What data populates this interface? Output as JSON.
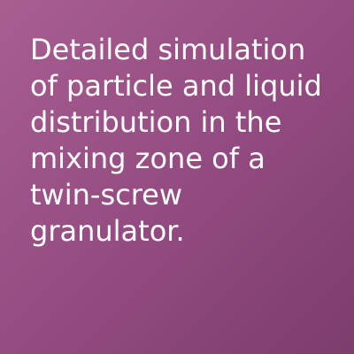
{
  "tile": {
    "background_color": "#944c82",
    "text_color": "#ffffff",
    "text": "Detailed simulation of particle and liquid distribution in the mixing zone of a twin-screw granulator."
  }
}
